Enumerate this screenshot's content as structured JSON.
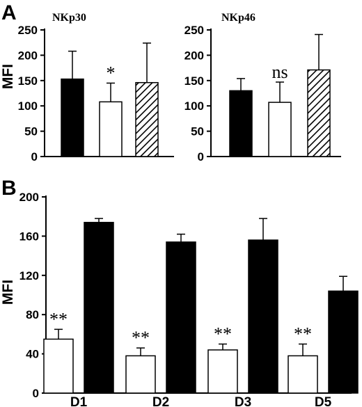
{
  "panels": {
    "a": "A",
    "b": "B"
  },
  "chart_data": [
    {
      "type": "bar",
      "title": "NKp30",
      "ylabel": "MFI",
      "ylim": [
        0,
        250
      ],
      "yticks": [
        0,
        50,
        100,
        150,
        200,
        250
      ],
      "bars": [
        {
          "value": 153,
          "error": 55,
          "fill": "black",
          "annotation": ""
        },
        {
          "value": 108,
          "error": 37,
          "fill": "white",
          "annotation": "*"
        },
        {
          "value": 146,
          "error": 78,
          "fill": "hatched",
          "annotation": ""
        }
      ]
    },
    {
      "type": "bar",
      "title": "NKp46",
      "ylabel": "",
      "ylim": [
        0,
        250
      ],
      "yticks": [
        0,
        50,
        100,
        150,
        200,
        250
      ],
      "bars": [
        {
          "value": 130,
          "error": 24,
          "fill": "black",
          "annotation": ""
        },
        {
          "value": 107,
          "error": 40,
          "fill": "white",
          "annotation": "ns"
        },
        {
          "value": 171,
          "error": 70,
          "fill": "hatched",
          "annotation": ""
        }
      ]
    },
    {
      "type": "bar",
      "title": "",
      "ylabel": "MFI",
      "ylim": [
        0,
        200
      ],
      "yticks": [
        0,
        40,
        80,
        120,
        160,
        200
      ],
      "categories": [
        "D1",
        "D2",
        "D3",
        "D5"
      ],
      "series": [
        {
          "fill": "white",
          "values": [
            55,
            38,
            44,
            38
          ],
          "errors": [
            10,
            8,
            6,
            12
          ],
          "annotations": [
            "**",
            "**",
            "**",
            "**"
          ]
        },
        {
          "fill": "black",
          "values": [
            174,
            154,
            156,
            104
          ],
          "errors": [
            4,
            8,
            22,
            15
          ],
          "annotations": [
            "",
            "",
            "",
            ""
          ]
        }
      ]
    }
  ]
}
